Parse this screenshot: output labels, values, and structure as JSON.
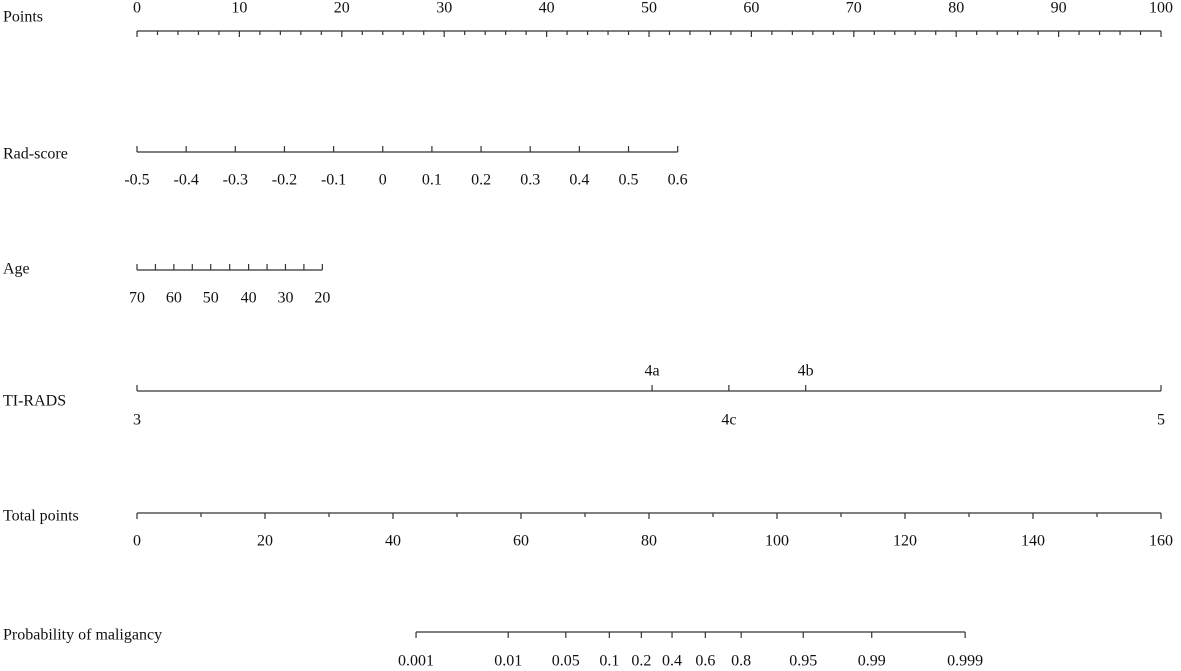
{
  "chart_data": {
    "type": "nomogram",
    "points_axis": {
      "label": "Points",
      "lim": [
        0,
        100
      ],
      "ticks": [
        0,
        10,
        20,
        30,
        40,
        50,
        60,
        70,
        80,
        90,
        100
      ]
    },
    "rows": [
      {
        "label": "Rad-score",
        "ticks": [
          -0.5,
          -0.4,
          -0.3,
          -0.2,
          -0.1,
          0,
          0.1,
          0.2,
          0.3,
          0.4,
          0.5,
          0.6
        ],
        "points": [
          0,
          4.8,
          9.6,
          14.4,
          19.2,
          24,
          28.8,
          33.6,
          38.4,
          43.2,
          48,
          52.8
        ]
      },
      {
        "label": "Age",
        "ticks": [
          70,
          60,
          50,
          40,
          30,
          20
        ],
        "points": [
          0,
          3.6,
          7.2,
          10.9,
          14.5,
          18.1
        ]
      },
      {
        "label": "TI-RADS",
        "ticks": [
          "3",
          "4a",
          "4c",
          "4b",
          "5"
        ],
        "points": [
          0,
          50.3,
          57.8,
          65.3,
          100
        ]
      }
    ],
    "total_axis": {
      "label": "Total points",
      "lim": [
        0,
        160
      ],
      "ticks": [
        0,
        20,
        40,
        60,
        80,
        100,
        120,
        140,
        160
      ]
    },
    "probability": {
      "label": "Probability of maligancy",
      "ticks": [
        0.001,
        0.01,
        0.05,
        0.1,
        0.2,
        0.4,
        0.6,
        0.8,
        0.95,
        0.99,
        0.999
      ],
      "total_points": [
        43.6,
        58.0,
        67.0,
        73.8,
        78.8,
        83.6,
        88.8,
        94.4,
        104.1,
        114.8,
        129.4
      ]
    }
  }
}
